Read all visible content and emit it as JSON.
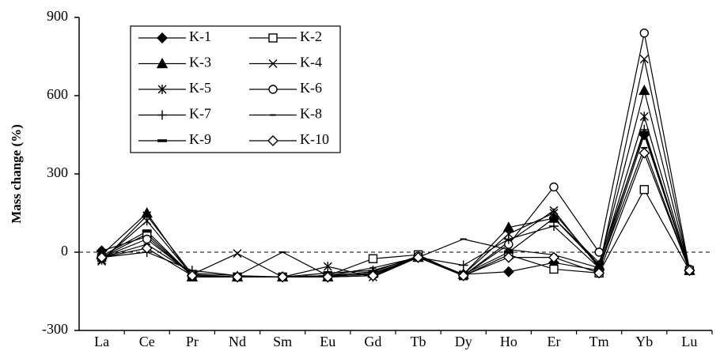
{
  "chart_data": {
    "type": "line",
    "y_label": "Mass change (%)",
    "categories": [
      "La",
      "Ce",
      "Pr",
      "Nd",
      "Sm",
      "Eu",
      "Gd",
      "Tb",
      "Dy",
      "Ho",
      "Er",
      "Tm",
      "Yb",
      "Lu"
    ],
    "ylim": [
      -300,
      900
    ],
    "yticks": [
      -300,
      0,
      300,
      600,
      900
    ],
    "reference_line": 0,
    "series": [
      {
        "name": "K-1",
        "color": "#000000",
        "marker": "diamond-filled",
        "values": [
          5,
          60,
          -90,
          -95,
          -95,
          -95,
          -90,
          -20,
          -85,
          -75,
          -40,
          -70,
          450,
          -70
        ]
      },
      {
        "name": "K-2",
        "color": "#000000",
        "marker": "square-open",
        "values": [
          -20,
          70,
          -90,
          -95,
          -95,
          -90,
          -25,
          -10,
          -90,
          -10,
          -65,
          -80,
          240,
          -70
        ]
      },
      {
        "name": "K-3",
        "color": "#000000",
        "marker": "triangle-filled",
        "values": [
          -10,
          150,
          -95,
          -95,
          -95,
          -95,
          -80,
          -20,
          -85,
          95,
          130,
          -50,
          620,
          -70
        ]
      },
      {
        "name": "K-4",
        "color": "#000000",
        "marker": "x",
        "values": [
          -35,
          140,
          -85,
          -5,
          -95,
          -90,
          -85,
          -20,
          -90,
          40,
          160,
          -60,
          740,
          -70
        ]
      },
      {
        "name": "K-5",
        "color": "#000000",
        "marker": "asterisk",
        "values": [
          -30,
          120,
          -90,
          -95,
          -95,
          -55,
          -95,
          -20,
          -85,
          70,
          150,
          -50,
          520,
          -70
        ]
      },
      {
        "name": "K-6",
        "color": "#000000",
        "marker": "circle-open",
        "values": [
          -20,
          50,
          -85,
          -95,
          -95,
          -90,
          -85,
          -15,
          -90,
          30,
          250,
          0,
          840,
          -65
        ]
      },
      {
        "name": "K-7",
        "color": "#000000",
        "marker": "plus",
        "values": [
          -20,
          0,
          -70,
          -90,
          -95,
          -80,
          -70,
          -20,
          -50,
          50,
          100,
          -60,
          470,
          -70
        ]
      },
      {
        "name": "K-8",
        "color": "#000000",
        "marker": "dash",
        "values": [
          -20,
          30,
          -80,
          -90,
          0,
          -90,
          -60,
          -20,
          50,
          10,
          -10,
          -60,
          400,
          -70
        ]
      },
      {
        "name": "K-9",
        "color": "#000000",
        "marker": "thick-dash",
        "values": [
          -15,
          80,
          -90,
          -95,
          -95,
          -90,
          -75,
          -15,
          -85,
          0,
          130,
          -40,
          460,
          -70
        ]
      },
      {
        "name": "K-10",
        "color": "#000000",
        "marker": "diamond-open",
        "values": [
          -20,
          15,
          -90,
          -95,
          -95,
          -95,
          -90,
          -20,
          -90,
          -20,
          -20,
          -80,
          380,
          -70
        ]
      }
    ]
  }
}
